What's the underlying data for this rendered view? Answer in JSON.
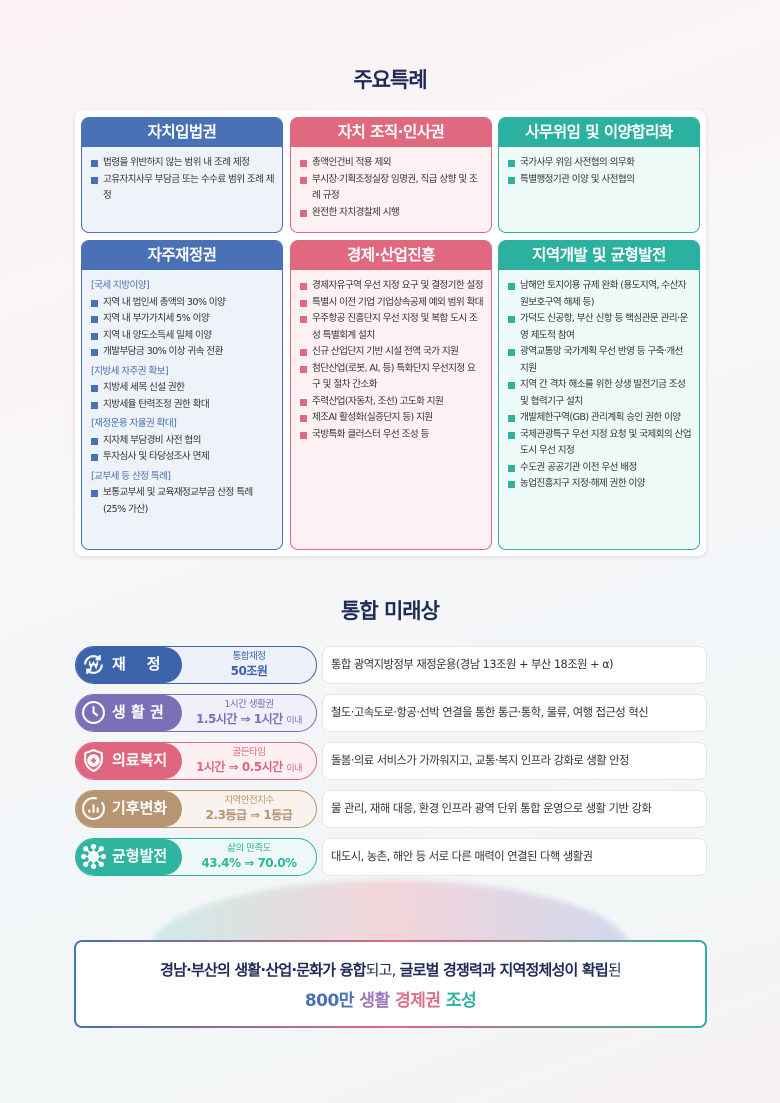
{
  "section1": {
    "title": "주요특례"
  },
  "cards": [
    {
      "title": "자치입법권",
      "color": "blue",
      "items": [
        {
          "t": "b",
          "v": "법령을 위반하지 않는 범위 내 조례 제정"
        },
        {
          "t": "b",
          "v": "고유자치사무 부담금 또는 수수료 범위 조례 제정"
        }
      ]
    },
    {
      "title": "자치 조직·인사권",
      "color": "pink",
      "items": [
        {
          "t": "b",
          "v": "총액인건비 적용 제외"
        },
        {
          "t": "b",
          "v": "부시장·기획조정실장 임명권, 직급 상향 및 조례 규정"
        },
        {
          "t": "b",
          "v": "완전한 자치경찰제 시행"
        }
      ]
    },
    {
      "title": "사무위임 및 이양합리화",
      "color": "teal",
      "items": [
        {
          "t": "b",
          "v": "국가사무 위임 사전협의 의무화"
        },
        {
          "t": "b",
          "v": "특별행정기관 이양 및 사전협의"
        }
      ]
    },
    {
      "title": "자주재정권",
      "color": "blue",
      "items": [
        {
          "t": "sec",
          "v": "[국세 지방이양]"
        },
        {
          "t": "b",
          "v": "지역 내 법인세 총액의 30% 이양"
        },
        {
          "t": "b",
          "v": "지역 내 부가가치세 5% 이양"
        },
        {
          "t": "b",
          "v": "지역 내 양도소득세 일체 이양"
        },
        {
          "t": "b",
          "v": "개발부담금 30% 이상 귀속 전환"
        },
        {
          "t": "sec",
          "v": "[지방세 자주권 확보]"
        },
        {
          "t": "b",
          "v": "지방세 세목 신설 권한"
        },
        {
          "t": "b",
          "v": "지방세율 탄력조정 권한 확대"
        },
        {
          "t": "sec",
          "v": "[재정운용 자율권 확대]"
        },
        {
          "t": "b",
          "v": "지자체 부담경비 사전 협의"
        },
        {
          "t": "b",
          "v": "투자심사 및 타당성조사 면제"
        },
        {
          "t": "sec",
          "v": "[교부세 등 산정 특례]"
        },
        {
          "t": "b",
          "v": "보통교부세 및 교육재정교부금 산정 특례 (25% 가산)"
        }
      ]
    },
    {
      "title": "경제·산업진흥",
      "color": "pink",
      "items": [
        {
          "t": "b",
          "v": "경제자유구역 우선 지정 요구 및 결정기한 설정"
        },
        {
          "t": "b",
          "v": "특별시 이전 기업 기업상속공제 예외 범위 확대"
        },
        {
          "t": "b",
          "v": "우주항공 진흥단지 우선 지정 및 복합 도시 조성 특별회계 설치"
        },
        {
          "t": "b",
          "v": "신규 산업단지 기반 시설 전액 국가 지원"
        },
        {
          "t": "b",
          "v": "첨단산업(로봇, AI, 등) 특화단지 우선지정 요구 및 절차 간소화"
        },
        {
          "t": "b",
          "v": "주력산업(자동차, 조선) 고도화 지원"
        },
        {
          "t": "b",
          "v": "제조AI 활성화(실증단지 등) 지원"
        },
        {
          "t": "b",
          "v": "국방특화 클러스터 우선 조성 등"
        }
      ]
    },
    {
      "title": "지역개발 및 균형발전",
      "color": "teal",
      "items": [
        {
          "t": "b",
          "v": "남해안 토지이용 규제 완화 (용도지역, 수산자원보호구역 해제 등)"
        },
        {
          "t": "b",
          "v": "가덕도 신공항, 부산 신항 등 핵심관문 관리·운영 제도적 참여"
        },
        {
          "t": "b",
          "v": "광역교통망 국가계획 우선 반영 등 구축·개선 지원"
        },
        {
          "t": "b",
          "v": "지역 간 격차 해소를 위한 상생 발전기금 조성 및 협력기구 설치"
        },
        {
          "t": "b",
          "v": "개발제한구역(GB) 관리계획 승인 권한 이양"
        },
        {
          "t": "b",
          "v": "국제관광특구 우선 지정 요청 및 국제회의 산업 도시 우선 지정"
        },
        {
          "t": "b",
          "v": "수도권 공공기관 이전 우선 배정"
        },
        {
          "t": "b",
          "v": "농업진흥지구 지정·해제 권한 이양"
        }
      ]
    }
  ],
  "section2": {
    "title": "통합 미래상"
  },
  "visions": [
    {
      "label": "재    정",
      "icon": "won-cycle-icon",
      "color": "#3d63ad",
      "light": "#eef1f9",
      "sub": "통합재정",
      "main": "50조원",
      "suffix": "",
      "desc": "통합 광역지방정부 재정운용(경남 13조원 + 부산 18조원 + α)"
    },
    {
      "label": "생 활 권",
      "icon": "clock-icon",
      "color": "#7b6fb5",
      "light": "#f1effa",
      "sub": "1시간 생활권",
      "main": "1.5시간 ⇒ 1시간",
      "suffix": "이내",
      "desc": "철도·고속도로·항공·선박 연결을 통한 통근·통학, 물류, 여행 접근성 혁신"
    },
    {
      "label": "의료복지",
      "icon": "shield-plus-icon",
      "color": "#e06680",
      "light": "#fdf0f3",
      "sub": "골든타임",
      "main": "1시간 ⇒ 0.5시간",
      "suffix": "이내",
      "desc": "돌봄·의료 서비스가 가까워지고, 교통·복지 인프라 강화로 생활 안정"
    },
    {
      "label": "기후변화",
      "icon": "bar-chart-circle-icon",
      "color": "#b89572",
      "light": "#f8f3ee",
      "sub": "지역안전지수",
      "main": "2.3등급 ⇒ 1등급",
      "suffix": "",
      "desc": "물 관리, 재해 대응, 환경 인프라 광역 단위 통합 운영으로 생활 기반 강화"
    },
    {
      "label": "균형발전",
      "icon": "network-node-icon",
      "color": "#2fb4a0",
      "light": "#eef9f7",
      "sub": "삶의 만족도",
      "main": "43.4% ⇒ 70.0%",
      "suffix": "",
      "desc": "대도시, 농촌, 해안 등 서로 다른 매력이 연결된 다핵 생활권"
    }
  ],
  "final": {
    "line1": [
      {
        "v": "경남·부산의 생활·산업·문화가 융합",
        "b": true
      },
      {
        "v": "되고, ",
        "b": false
      },
      {
        "v": "글로벌 경쟁력과 지역정체성이 확립",
        "b": true
      },
      {
        "v": "된",
        "b": false
      }
    ],
    "line2": [
      {
        "v": "800만 ",
        "c": "#4a70b5"
      },
      {
        "v": "생활 ",
        "c": "#9b78b8"
      },
      {
        "v": "경제권 ",
        "c": "#d8708a"
      },
      {
        "v": "조성",
        "c": "#2cb09f"
      }
    ]
  }
}
